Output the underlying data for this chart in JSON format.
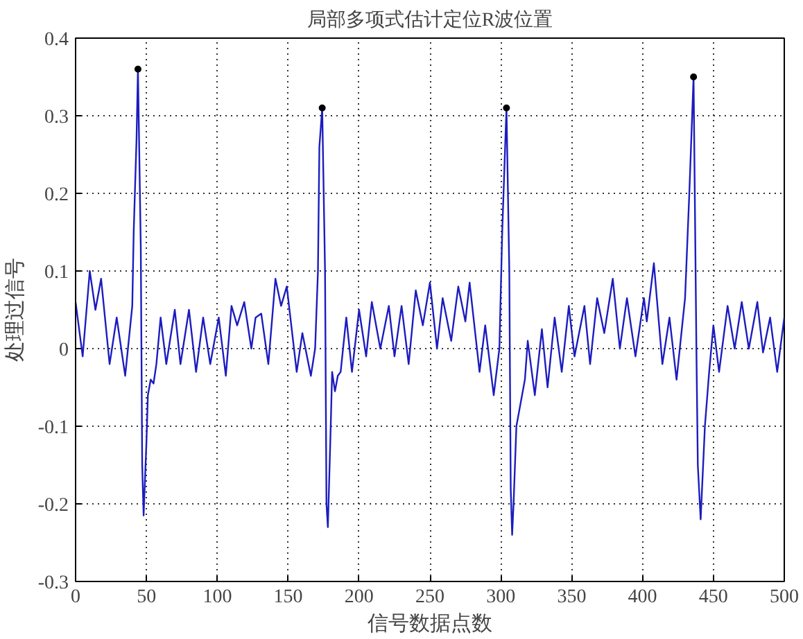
{
  "chart_data": {
    "type": "line",
    "title": "局部多项式估计定位R波位置",
    "xlabel": "信号数据点数",
    "ylabel": "处理过信号",
    "xlim": [
      0,
      500
    ],
    "ylim": [
      -0.3,
      0.4
    ],
    "xticks": [
      0,
      50,
      100,
      150,
      200,
      250,
      300,
      350,
      400,
      450,
      500
    ],
    "yticks": [
      -0.3,
      -0.2,
      -0.1,
      0,
      0.1,
      0.2,
      0.3,
      0.4
    ],
    "grid": true,
    "line_style": "solid",
    "series": [
      {
        "color": "#1c1cc0",
        "x": [
          0,
          5,
          10,
          14,
          18,
          24,
          29,
          35,
          40,
          41,
          43,
          44,
          46,
          47,
          48,
          50,
          51,
          53,
          55,
          57,
          60,
          64,
          70,
          74,
          80,
          85,
          90,
          95,
          101,
          106,
          110,
          114,
          119,
          124,
          127,
          131,
          136,
          141,
          145,
          149,
          156,
          160,
          166,
          169,
          171,
          172,
          174,
          176,
          177,
          178,
          180,
          181,
          183,
          185,
          187,
          191,
          195,
          200,
          205,
          209,
          215,
          221,
          225,
          230,
          235,
          240,
          245,
          250,
          255,
          259,
          265,
          270,
          275,
          278,
          285,
          289,
          295,
          299,
          301,
          304,
          306,
          307,
          308,
          309,
          311,
          313,
          317,
          319,
          324,
          329,
          333,
          338,
          343,
          348,
          352,
          359,
          363,
          368,
          373,
          379,
          384,
          389,
          395,
          401,
          403,
          408,
          414,
          419,
          424,
          430,
          433,
          436,
          438,
          439,
          441,
          444,
          447,
          450,
          454,
          460,
          465,
          470,
          475,
          481,
          485,
          490,
          495,
          500
        ],
        "values": [
          0.06,
          -0.01,
          0.1,
          0.05,
          0.09,
          -0.02,
          0.04,
          -0.035,
          0.055,
          0.15,
          0.27,
          0.36,
          0.13,
          -0.15,
          -0.215,
          -0.12,
          -0.06,
          -0.04,
          -0.045,
          -0.02,
          0.04,
          -0.02,
          0.05,
          -0.02,
          0.05,
          -0.03,
          0.04,
          -0.02,
          0.04,
          -0.035,
          0.055,
          0.03,
          0.06,
          0.0,
          0.04,
          0.045,
          -0.02,
          0.09,
          0.055,
          0.08,
          -0.03,
          0.02,
          -0.035,
          0.0,
          0.1,
          0.26,
          0.31,
          0.1,
          -0.2,
          -0.23,
          -0.1,
          -0.03,
          -0.055,
          -0.035,
          -0.03,
          0.04,
          -0.03,
          0.05,
          -0.01,
          0.06,
          0.0,
          0.055,
          -0.01,
          0.055,
          -0.02,
          0.075,
          0.03,
          0.085,
          0.0,
          0.065,
          0.01,
          0.08,
          0.035,
          0.085,
          -0.03,
          0.03,
          -0.06,
          0.0,
          0.15,
          0.31,
          0.1,
          -0.18,
          -0.24,
          -0.2,
          -0.1,
          -0.08,
          -0.04,
          0.01,
          -0.06,
          0.025,
          -0.05,
          0.04,
          -0.03,
          0.055,
          -0.01,
          0.055,
          -0.02,
          0.065,
          0.02,
          0.09,
          0.0,
          0.065,
          -0.01,
          0.065,
          0.035,
          0.11,
          -0.02,
          0.04,
          -0.04,
          0.065,
          0.2,
          0.35,
          0.0,
          -0.15,
          -0.22,
          -0.1,
          -0.03,
          0.03,
          -0.03,
          0.055,
          0.0,
          0.06,
          0.0,
          0.06,
          -0.005,
          0.04,
          -0.03,
          0.04
        ]
      },
      {
        "type": "scatter",
        "color": "#000000",
        "marker": "circle",
        "x": [
          44,
          174,
          304,
          436
        ],
        "values": [
          0.36,
          0.31,
          0.31,
          0.35
        ]
      }
    ]
  }
}
